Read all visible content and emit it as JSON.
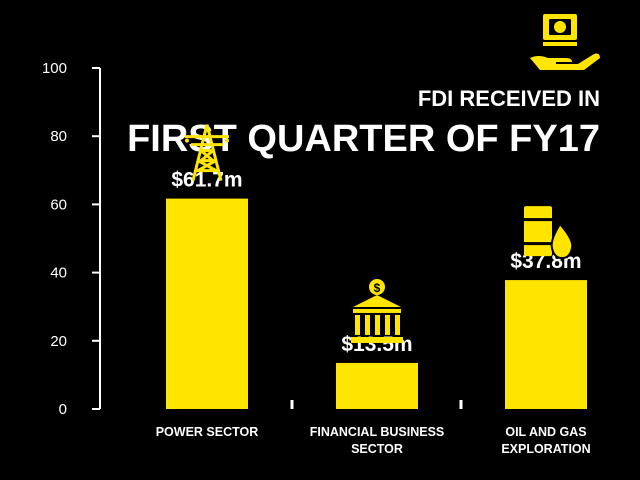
{
  "chart_data": {
    "type": "bar",
    "title_line1": "FDI RECEIVED IN",
    "title_line2": "FIRST QUARTER OF FY17",
    "categories": [
      [
        "POWER SECTOR"
      ],
      [
        "FINANCIAL BUSINESS",
        "SECTOR"
      ],
      [
        "OIL AND GAS",
        "EXPLORATION"
      ]
    ],
    "values": [
      61.7,
      13.5,
      37.8
    ],
    "value_labels": [
      "$61.7m",
      "$13.5m",
      "$37.8m"
    ],
    "category_icons": [
      "power-tower-icon",
      "bank-building-icon",
      "oil-barrel-drop-icon"
    ],
    "title_icon": "money-in-hand-icon",
    "yticks": [
      0,
      20,
      40,
      60,
      80,
      100
    ],
    "ylim": [
      0,
      100
    ],
    "grid": false,
    "xlabel": "",
    "ylabel": "",
    "colors": {
      "background": "#000000",
      "bar": "#ffe500",
      "text": "#ffffff",
      "axis": "#ffffff"
    }
  }
}
